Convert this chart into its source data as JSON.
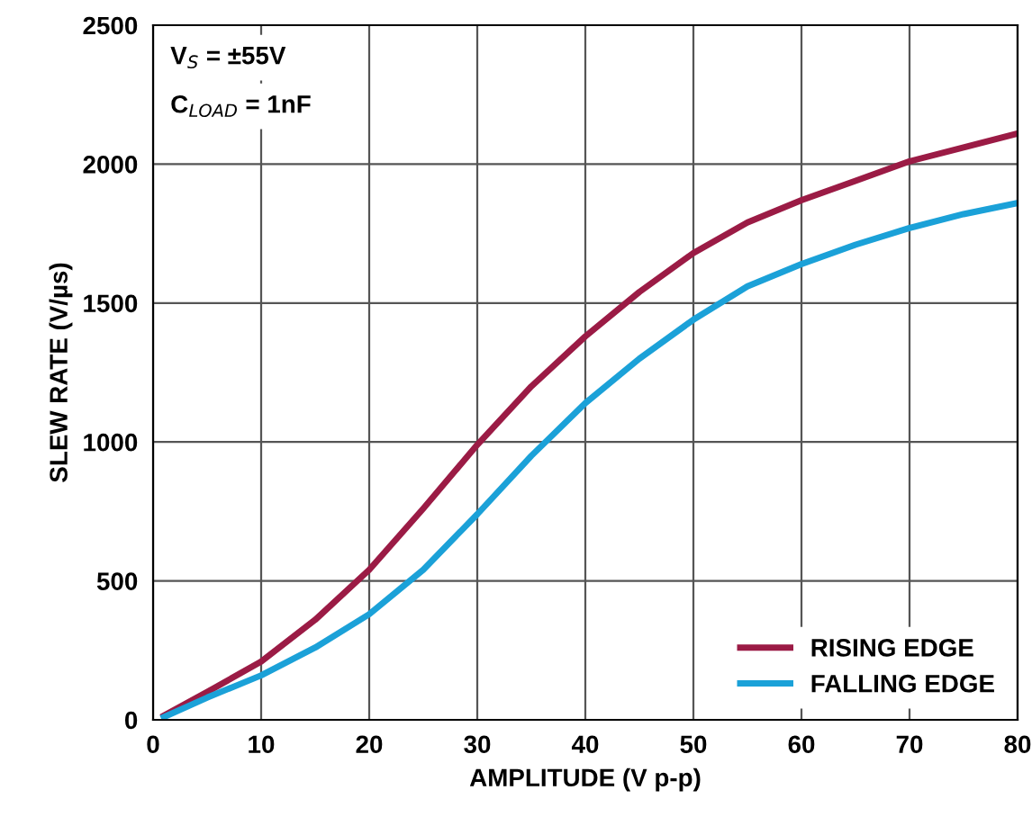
{
  "chart_data": {
    "type": "line",
    "xlabel": "AMPLITUDE (V p-p)",
    "ylabel": "SLEW RATE (V/µs)",
    "xlim": [
      0,
      80
    ],
    "xticks": [
      0,
      10,
      20,
      30,
      40,
      50,
      60,
      70,
      80
    ],
    "ylim": [
      0,
      2500
    ],
    "yticks": [
      0,
      500,
      1000,
      1500,
      2000,
      2500
    ],
    "grid": true,
    "legend": "bottom right",
    "marker": "none",
    "line_style": "solid",
    "annotations": [
      "V$_{S}$ = ±55V",
      "C$_{LOAD}$ = 1nF"
    ],
    "series": [
      {
        "name": "RISING EDGE",
        "color": "#9b1b45",
        "x": [
          1,
          5,
          10,
          15,
          20,
          25,
          30,
          35,
          40,
          45,
          50,
          55,
          60,
          65,
          70,
          75,
          80
        ],
        "values": [
          15,
          100,
          210,
          360,
          540,
          760,
          990,
          1200,
          1380,
          1540,
          1680,
          1790,
          1870,
          1940,
          2010,
          2060,
          2110
        ]
      },
      {
        "name": "FALLING EDGE",
        "color": "#1ba1d8",
        "x": [
          1,
          5,
          10,
          15,
          20,
          25,
          30,
          35,
          40,
          45,
          50,
          55,
          60,
          65,
          70,
          75,
          80
        ],
        "values": [
          10,
          80,
          160,
          260,
          380,
          540,
          740,
          950,
          1140,
          1300,
          1440,
          1560,
          1640,
          1710,
          1770,
          1820,
          1860
        ]
      }
    ]
  }
}
